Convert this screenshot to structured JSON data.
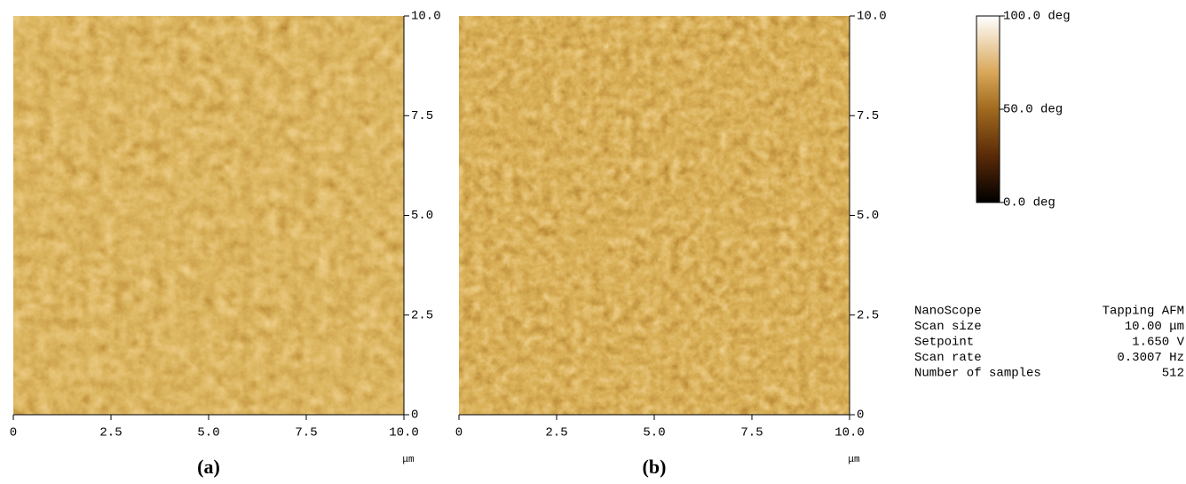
{
  "panels": [
    {
      "caption": "(a)",
      "x_unit": "μm",
      "xticks": [
        {
          "value": 0,
          "label": "0"
        },
        2.5,
        {
          "value": 5,
          "label": "5.0"
        },
        7.5,
        {
          "value": 10,
          "label": "10.0"
        }
      ],
      "yticks": [
        {
          "value": 0,
          "label": "0"
        },
        2.5,
        {
          "value": 5,
          "label": "5.0"
        },
        7.5,
        {
          "value": 10,
          "label": "10.0"
        }
      ]
    },
    {
      "caption": "(b)",
      "x_unit": "μm",
      "xticks": [
        {
          "value": 0,
          "label": "0"
        },
        2.5,
        {
          "value": 5,
          "label": "5.0"
        },
        7.5,
        {
          "value": 10,
          "label": "10.0"
        }
      ],
      "yticks": [
        {
          "value": 0,
          "label": "0"
        },
        2.5,
        {
          "value": 5,
          "label": "5.0"
        },
        7.5,
        {
          "value": 10,
          "label": "10.0"
        }
      ]
    }
  ],
  "colorbar": {
    "labels": [
      "100.0 deg",
      "50.0 deg",
      "0.0 deg"
    ]
  },
  "info": {
    "rows": [
      [
        "NanoScope",
        "Tapping AFM"
      ],
      [
        "Scan size",
        "10.00 μm"
      ],
      [
        "Setpoint",
        "1.650 V"
      ],
      [
        "Scan rate",
        "0.3007 Hz"
      ],
      [
        "Number of samples",
        "512"
      ]
    ]
  }
}
